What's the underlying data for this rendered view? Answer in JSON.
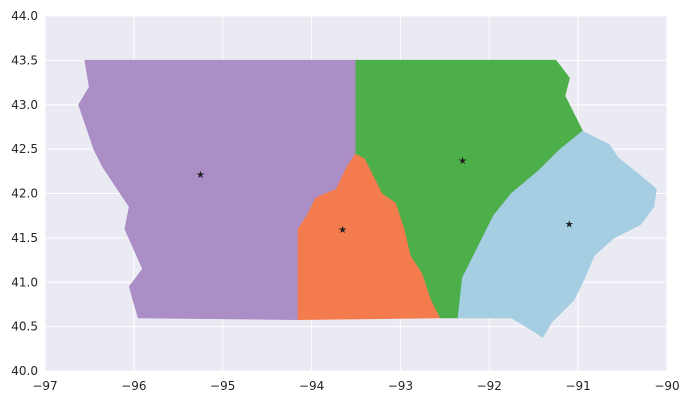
{
  "chart_data": {
    "type": "map",
    "title": "",
    "xlabel": "",
    "ylabel": "",
    "xlim": [
      -97,
      -90
    ],
    "ylim": [
      40.0,
      44.0
    ],
    "grid": true,
    "x_ticks": [
      -97,
      -96,
      -95,
      -94,
      -93,
      -92,
      -91,
      -90
    ],
    "x_tick_labels": [
      "−97",
      "−96",
      "−95",
      "−94",
      "−93",
      "−92",
      "−91",
      "−90"
    ],
    "y_ticks": [
      40.0,
      40.5,
      41.0,
      41.5,
      42.0,
      42.5,
      43.0,
      43.5,
      44.0
    ],
    "y_tick_labels": [
      "40.0",
      "40.5",
      "41.0",
      "41.5",
      "42.0",
      "42.5",
      "43.0",
      "43.5",
      "44.0"
    ],
    "background_color": "#eaeaf2",
    "grid_color": "#ffffff",
    "regions": [
      {
        "color": "#ab8ec6",
        "polygon": [
          [
            -96.55,
            43.5
          ],
          [
            -93.5,
            43.5
          ],
          [
            -93.5,
            42.45
          ],
          [
            -93.6,
            42.3
          ],
          [
            -93.72,
            42.05
          ],
          [
            -93.95,
            41.95
          ],
          [
            -94.05,
            41.75
          ],
          [
            -94.15,
            41.6
          ],
          [
            -94.15,
            40.58
          ],
          [
            -95.95,
            40.6
          ],
          [
            -96.05,
            40.95
          ],
          [
            -95.9,
            41.15
          ],
          [
            -96.1,
            41.6
          ],
          [
            -96.05,
            41.85
          ],
          [
            -96.35,
            42.3
          ],
          [
            -96.45,
            42.5
          ],
          [
            -96.62,
            43.0
          ],
          [
            -96.5,
            43.2
          ]
        ]
      },
      {
        "color": "#f47b4e",
        "polygon": [
          [
            -93.5,
            42.45
          ],
          [
            -93.4,
            42.4
          ],
          [
            -93.3,
            42.2
          ],
          [
            -93.2,
            42.0
          ],
          [
            -93.05,
            41.9
          ],
          [
            -92.95,
            41.6
          ],
          [
            -92.88,
            41.3
          ],
          [
            -92.75,
            41.1
          ],
          [
            -92.65,
            40.8
          ],
          [
            -92.55,
            40.6
          ],
          [
            -94.15,
            40.58
          ],
          [
            -94.15,
            41.6
          ],
          [
            -94.05,
            41.75
          ],
          [
            -93.95,
            41.95
          ],
          [
            -93.72,
            42.05
          ],
          [
            -93.6,
            42.3
          ]
        ]
      },
      {
        "color": "#4daf4a",
        "polygon": [
          [
            -93.5,
            43.5
          ],
          [
            -91.25,
            43.5
          ],
          [
            -91.1,
            43.3
          ],
          [
            -91.15,
            43.1
          ],
          [
            -91.05,
            42.9
          ],
          [
            -90.95,
            42.7
          ],
          [
            -91.2,
            42.5
          ],
          [
            -91.45,
            42.25
          ],
          [
            -91.75,
            42.0
          ],
          [
            -91.95,
            41.75
          ],
          [
            -92.1,
            41.45
          ],
          [
            -92.3,
            41.05
          ],
          [
            -92.35,
            40.6
          ],
          [
            -92.55,
            40.6
          ],
          [
            -92.65,
            40.8
          ],
          [
            -92.75,
            41.1
          ],
          [
            -92.88,
            41.3
          ],
          [
            -92.95,
            41.6
          ],
          [
            -93.05,
            41.9
          ],
          [
            -93.2,
            42.0
          ],
          [
            -93.3,
            42.2
          ],
          [
            -93.4,
            42.4
          ],
          [
            -93.5,
            42.45
          ]
        ]
      },
      {
        "color": "#a6cee3",
        "polygon": [
          [
            -90.95,
            42.7
          ],
          [
            -91.2,
            42.5
          ],
          [
            -91.45,
            42.25
          ],
          [
            -91.75,
            42.0
          ],
          [
            -91.95,
            41.75
          ],
          [
            -92.1,
            41.45
          ],
          [
            -92.3,
            41.05
          ],
          [
            -92.35,
            40.6
          ],
          [
            -91.75,
            40.6
          ],
          [
            -91.5,
            40.45
          ],
          [
            -91.4,
            40.38
          ],
          [
            -91.3,
            40.55
          ],
          [
            -91.05,
            40.8
          ],
          [
            -90.95,
            41.0
          ],
          [
            -90.82,
            41.3
          ],
          [
            -90.6,
            41.5
          ],
          [
            -90.3,
            41.65
          ],
          [
            -90.15,
            41.85
          ],
          [
            -90.12,
            42.05
          ],
          [
            -90.3,
            42.2
          ],
          [
            -90.55,
            42.4
          ],
          [
            -90.65,
            42.55
          ]
        ]
      }
    ],
    "centers": [
      {
        "x": -95.25,
        "y": 42.22
      },
      {
        "x": -93.65,
        "y": 41.6
      },
      {
        "x": -92.3,
        "y": 42.38
      },
      {
        "x": -91.1,
        "y": 41.66
      }
    ],
    "center_marker": "★"
  }
}
